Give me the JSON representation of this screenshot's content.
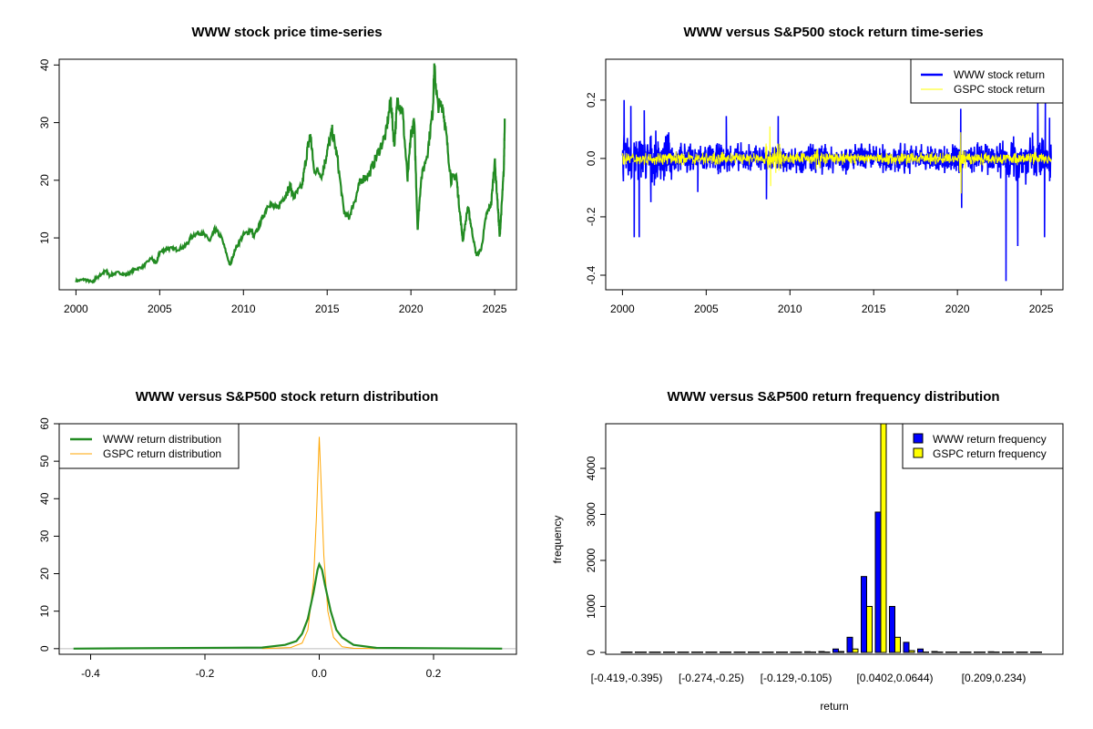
{
  "chart_data": [
    {
      "type": "line",
      "title": "WWW stock price time-series",
      "xlabel": "",
      "ylabel": "",
      "xlim": [
        1999.0,
        2026.3
      ],
      "ylim": [
        1.0,
        41.0
      ],
      "x_ticks": [
        "2000",
        "2005",
        "2010",
        "2015",
        "2020",
        "2025"
      ],
      "y_ticks": [
        "10",
        "20",
        "30",
        "40"
      ],
      "color": "#228B22",
      "series": [
        {
          "x": [
            2000.0,
            2000.5,
            2001.0,
            2001.2,
            2001.5,
            2001.8,
            2002.0,
            2002.5,
            2003.0,
            2003.5,
            2004.0,
            2004.5,
            2004.8,
            2005.0,
            2005.5,
            2006.0,
            2006.5,
            2007.0,
            2007.5,
            2008.0,
            2008.3,
            2008.7,
            2009.2,
            2009.5,
            2010.0,
            2010.5,
            2010.6,
            2011.0,
            2011.5,
            2012.0,
            2012.5,
            2012.8,
            2013.0,
            2013.5,
            2013.8,
            2014.0,
            2014.2,
            2014.7,
            2015.0,
            2015.3,
            2015.6,
            2016.0,
            2016.3,
            2016.7,
            2017.0,
            2017.5,
            2018.0,
            2018.5,
            2018.8,
            2019.0,
            2019.2,
            2019.5,
            2019.8,
            2020.0,
            2020.2,
            2020.4,
            2020.6,
            2021.0,
            2021.3,
            2021.4,
            2021.6,
            2021.9,
            2022.1,
            2022.4,
            2022.7,
            2022.9,
            2023.1,
            2023.4,
            2023.6,
            2023.9,
            2024.2,
            2024.5,
            2024.8,
            2025.0,
            2025.2,
            2025.3,
            2025.45,
            2025.55,
            2025.6
          ],
          "y": [
            2.5,
            2.8,
            2.3,
            3.0,
            3.7,
            4.3,
            3.5,
            4.0,
            3.6,
            4.5,
            5.0,
            6.5,
            5.5,
            7.5,
            8.2,
            8.0,
            8.5,
            10.5,
            11.0,
            9.5,
            11.5,
            10.0,
            5.2,
            8.0,
            10.5,
            11.5,
            10.0,
            12.5,
            16.0,
            15.0,
            17.5,
            19.0,
            17.0,
            19.0,
            25.0,
            28.0,
            22.0,
            21.0,
            25.0,
            28.5,
            24.0,
            14.5,
            13.5,
            17.0,
            20.0,
            21.0,
            24.5,
            28.0,
            34.0,
            26.0,
            34.0,
            32.0,
            20.0,
            28.0,
            30.0,
            11.5,
            20.0,
            25.0,
            32.0,
            39.5,
            33.0,
            33.0,
            28.0,
            20.0,
            21.0,
            15.0,
            9.5,
            15.5,
            12.0,
            7.0,
            8.0,
            14.0,
            16.0,
            23.5,
            15.0,
            10.0,
            17.0,
            22.0,
            30.7
          ]
        }
      ]
    },
    {
      "type": "line",
      "title": "WWW versus S&P500 stock return time-series",
      "xlabel": "",
      "ylabel": "",
      "xlim": [
        1999.0,
        2026.3
      ],
      "ylim": [
        -0.45,
        0.34
      ],
      "x_ticks": [
        "2000",
        "2005",
        "2010",
        "2015",
        "2020",
        "2025"
      ],
      "y_ticks": [
        "-0.4",
        "-0.2",
        "0.0",
        "0.2"
      ],
      "legend": "top-right",
      "series": [
        {
          "name": "WWW stock return",
          "color": "#0000FF",
          "typical_range": [
            -0.06,
            0.06
          ],
          "spikes": [
            [
              2000.1,
              0.2
            ],
            [
              2000.5,
              0.18
            ],
            [
              2000.7,
              -0.27
            ],
            [
              2001.0,
              -0.27
            ],
            [
              2001.3,
              0.165
            ],
            [
              2001.7,
              -0.15
            ],
            [
              2004.5,
              -0.115
            ],
            [
              2006.2,
              0.145
            ],
            [
              2008.6,
              -0.14
            ],
            [
              2009.3,
              0.145
            ],
            [
              2020.2,
              0.17
            ],
            [
              2020.25,
              -0.17
            ],
            [
              2022.9,
              -0.42
            ],
            [
              2023.6,
              -0.3
            ],
            [
              2024.8,
              0.19
            ],
            [
              2025.2,
              -0.27
            ],
            [
              2025.25,
              0.19
            ],
            [
              2025.5,
              0.14
            ]
          ]
        },
        {
          "name": "GSPC stock return",
          "color": "#FFFF00",
          "typical_range": [
            -0.025,
            0.025
          ],
          "spikes": [
            [
              2008.8,
              0.11
            ],
            [
              2008.85,
              -0.095
            ],
            [
              2020.2,
              0.09
            ],
            [
              2020.22,
              -0.12
            ]
          ]
        }
      ]
    },
    {
      "type": "line",
      "title": "WWW versus S&P500 stock return distribution",
      "xlabel": "",
      "ylabel": "",
      "xlim": [
        -0.455,
        0.345
      ],
      "ylim": [
        -1.5,
        60
      ],
      "x_ticks": [
        "-0.4",
        "-0.2",
        "0.0",
        "0.2"
      ],
      "y_ticks": [
        "0",
        "10",
        "20",
        "30",
        "40",
        "50",
        "60"
      ],
      "legend": "top-left",
      "series": [
        {
          "name": "WWW return distribution",
          "color": "#228B22",
          "x": [
            -0.43,
            -0.1,
            -0.06,
            -0.04,
            -0.03,
            -0.02,
            -0.01,
            -0.003,
            0.0,
            0.005,
            0.01,
            0.02,
            0.03,
            0.04,
            0.06,
            0.1,
            0.32
          ],
          "y": [
            0,
            0.3,
            1,
            2,
            4,
            8,
            15,
            21,
            22.5,
            21,
            17,
            10,
            5,
            3,
            1,
            0.2,
            0
          ]
        },
        {
          "name": "GSPC return distribution",
          "color": "#FFA500",
          "x": [
            -0.1,
            -0.05,
            -0.03,
            -0.02,
            -0.01,
            -0.005,
            0.0,
            0.003,
            0.008,
            0.015,
            0.025,
            0.04,
            0.06,
            0.1
          ],
          "y": [
            0,
            0.3,
            1.5,
            5,
            18,
            35,
            56.5,
            45,
            25,
            10,
            3,
            0.5,
            0.1,
            0
          ]
        }
      ]
    },
    {
      "type": "bar",
      "title": "WWW versus S&P500 return frequency distribution",
      "xlabel": "return",
      "ylabel": "frequency",
      "ylim": [
        0,
        4970
      ],
      "y_ticks": [
        "0",
        "1000",
        "2000",
        "3000",
        "4000"
      ],
      "legend": "top-right",
      "categories": [
        "[-0.419,-0.395)",
        "",
        "",
        "",
        "",
        "",
        "[-0.274,-0.25)",
        "",
        "",
        "",
        "",
        "",
        "[-0.129,-0.105)",
        "",
        "",
        "",
        "",
        "",
        "",
        "[0.0402,0.0644)",
        "",
        "",
        "",
        "",
        "",
        "",
        "[0.209,0.234)",
        "",
        "",
        ""
      ],
      "series": [
        {
          "name": "WWW return frequency",
          "color": "#0000FF",
          "values": [
            1,
            0,
            0,
            0,
            0,
            0,
            1,
            0,
            0,
            0,
            0,
            0,
            2,
            15,
            20,
            75,
            330,
            1650,
            3050,
            1000,
            220,
            75,
            20,
            2,
            1,
            2,
            15,
            1,
            0,
            1
          ]
        },
        {
          "name": "GSPC return frequency",
          "color": "#FFFF00",
          "values": [
            0,
            0,
            0,
            0,
            0,
            0,
            0,
            0,
            0,
            0,
            0,
            0,
            0,
            0,
            5,
            20,
            75,
            1000,
            5400,
            330,
            40,
            5,
            2,
            0,
            0,
            0,
            0,
            0,
            0,
            0
          ]
        }
      ]
    }
  ]
}
